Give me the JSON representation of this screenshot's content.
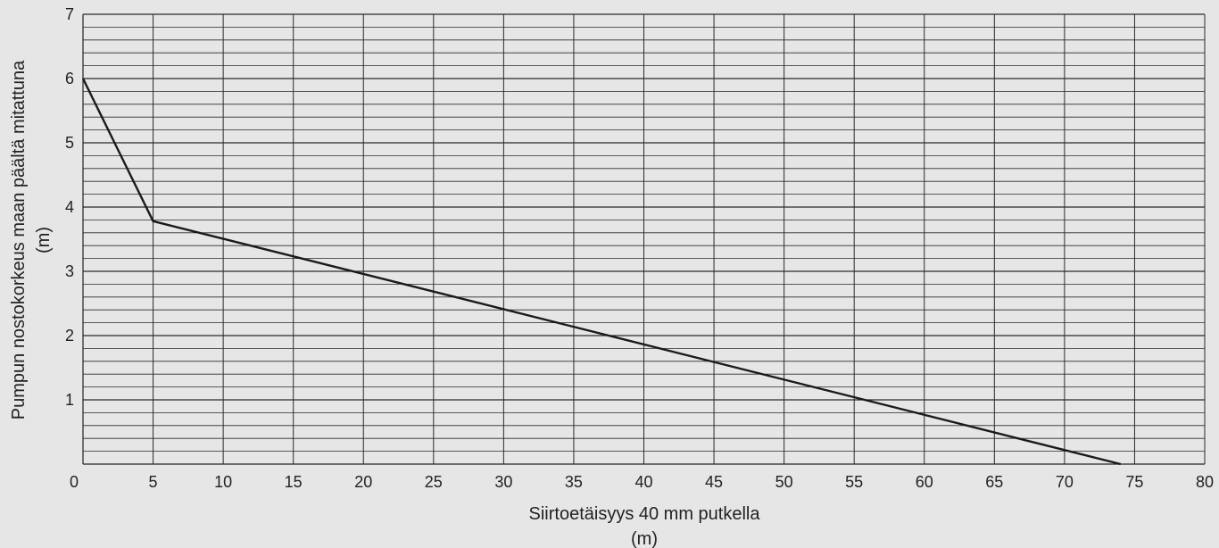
{
  "chart_data": {
    "type": "line",
    "xlabel_line1": "Siirtoetäisyys 40 mm putkella",
    "xlabel_line2": "(m)",
    "ylabel_line1": "Pumpun nostokorkeus maan päältä mitattuna",
    "ylabel_line2": "(m)",
    "xlim": [
      0,
      80
    ],
    "ylim": [
      0,
      7
    ],
    "x_ticks": [
      0,
      5,
      10,
      15,
      20,
      25,
      30,
      35,
      40,
      45,
      50,
      55,
      60,
      65,
      70,
      75,
      80
    ],
    "x_tick_labels": [
      "0",
      "5",
      "10",
      "15",
      "20",
      "25",
      "30",
      "35",
      "40",
      "45",
      "50",
      "55",
      "60",
      "65",
      "70",
      "75",
      "80"
    ],
    "y_ticks": [
      1,
      2,
      3,
      4,
      5,
      6,
      7
    ],
    "y_tick_labels": [
      "1",
      "2",
      "3",
      "4",
      "5",
      "6",
      "7"
    ],
    "grid": true,
    "y_minor_step": 0.2,
    "series": [
      {
        "x": [
          0,
          5,
          74
        ],
        "y": [
          6,
          3.78,
          0
        ],
        "color": "#1a1a1a"
      }
    ]
  }
}
